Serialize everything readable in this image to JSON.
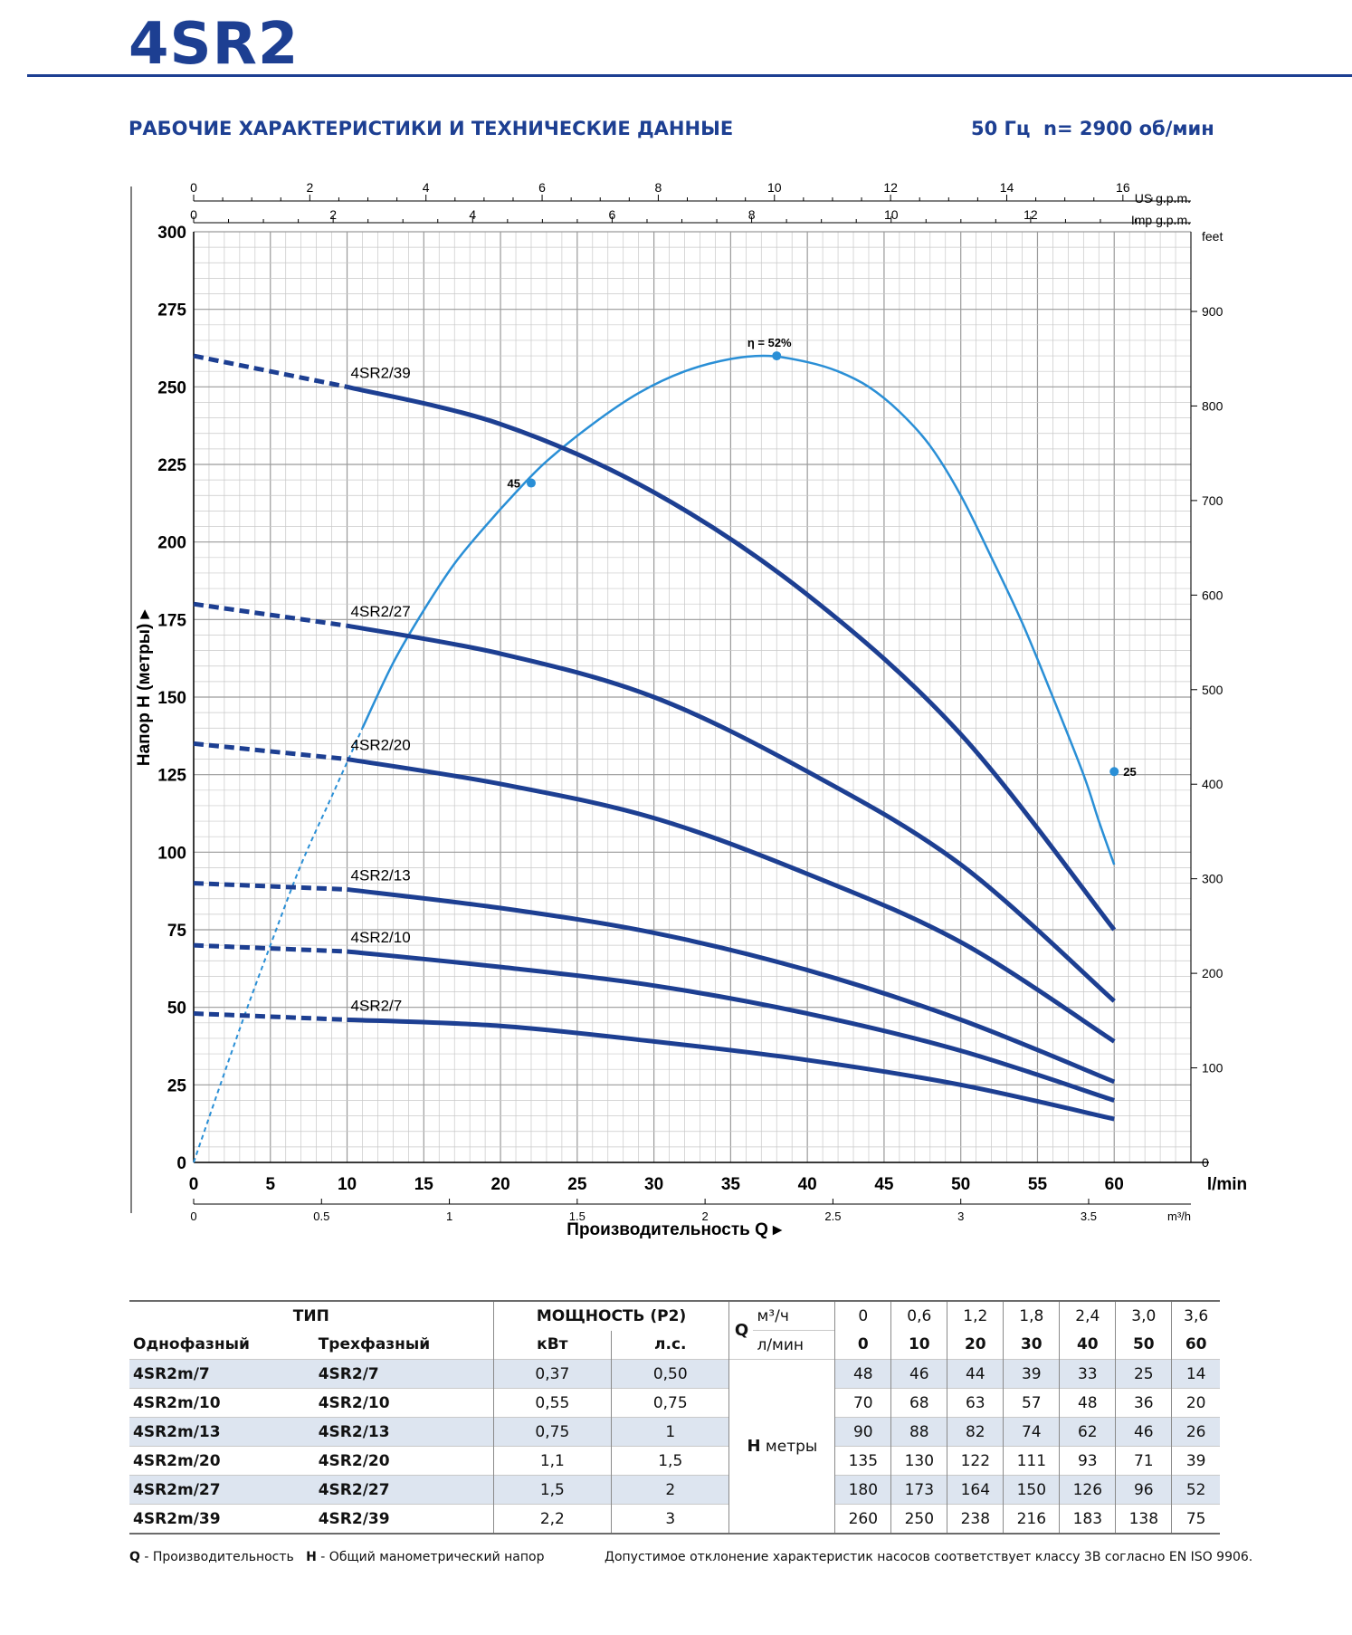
{
  "header": {
    "model": "4SR2",
    "subtitle": "РАБОЧИЕ ХАРАКТЕРИСТИКИ И ТЕХНИЧЕСКИЕ ДАННЫЕ",
    "frequency": "50 Гц",
    "speed": "n= 2900 об/мин"
  },
  "chart_data": {
    "type": "line",
    "xlabel": "Производительность Q",
    "ylabel": "Напор H (метры)",
    "x_unit": "l/min",
    "y_unit_right": "feet",
    "xlim": [
      0,
      65
    ],
    "ylim": [
      0,
      300
    ],
    "x_ticks": [
      "0",
      "5",
      "10",
      "15",
      "20",
      "25",
      "30",
      "35",
      "40",
      "45",
      "50",
      "55",
      "60"
    ],
    "y_ticks": [
      "0",
      "25",
      "50",
      "75",
      "100",
      "125",
      "150",
      "175",
      "200",
      "225",
      "250",
      "275",
      "300"
    ],
    "feet_ticks": [
      "0",
      "100",
      "200",
      "300",
      "400",
      "500",
      "600",
      "700",
      "800",
      "900"
    ],
    "m3h_unit": "m³/h",
    "m3h_ticks": [
      "0",
      "0.5",
      "1",
      "1.5",
      "2",
      "2.5",
      "3",
      "3.5"
    ],
    "usgpm_unit": "US g.p.m.",
    "usgpm_ticks": [
      "0",
      "2",
      "4",
      "6",
      "8",
      "10",
      "12",
      "14",
      "16"
    ],
    "impgpm_unit": "Imp g.p.m.",
    "impgpm_ticks": [
      "0",
      "2",
      "4",
      "6",
      "8",
      "10",
      "12"
    ],
    "grid": true,
    "series": [
      {
        "name": "4SR2/39",
        "x": [
          0,
          10,
          20,
          30,
          40,
          50,
          60
        ],
        "y": [
          260,
          250,
          238,
          216,
          183,
          138,
          75
        ]
      },
      {
        "name": "4SR2/27",
        "x": [
          0,
          10,
          20,
          30,
          40,
          50,
          60
        ],
        "y": [
          180,
          173,
          164,
          150,
          126,
          96,
          52
        ]
      },
      {
        "name": "4SR2/20",
        "x": [
          0,
          10,
          20,
          30,
          40,
          50,
          60
        ],
        "y": [
          135,
          130,
          122,
          111,
          93,
          71,
          39
        ]
      },
      {
        "name": "4SR2/13",
        "x": [
          0,
          10,
          20,
          30,
          40,
          50,
          60
        ],
        "y": [
          90,
          88,
          82,
          74,
          62,
          46,
          26
        ]
      },
      {
        "name": "4SR2/10",
        "x": [
          0,
          10,
          20,
          30,
          40,
          50,
          60
        ],
        "y": [
          70,
          68,
          63,
          57,
          48,
          36,
          20
        ]
      },
      {
        "name": "4SR2/7",
        "x": [
          0,
          10,
          20,
          30,
          40,
          50,
          60
        ],
        "y": [
          48,
          46,
          44,
          39,
          33,
          25,
          14
        ]
      }
    ],
    "efficiency": {
      "x": [
        0,
        3,
        5,
        7,
        9,
        11,
        13,
        15,
        17,
        19,
        21,
        23,
        26,
        29,
        32,
        35,
        37.5,
        40,
        42,
        44,
        46,
        48,
        50,
        52,
        54,
        56,
        58,
        59,
        60
      ],
      "y": [
        0,
        43,
        70,
        96,
        118,
        140,
        161,
        178,
        193,
        205,
        216,
        226,
        238,
        248,
        255,
        259,
        260,
        258,
        255,
        250,
        242,
        231,
        215,
        195,
        174,
        150,
        125,
        110,
        96
      ],
      "dashed_until_x": 10,
      "labels": [
        {
          "x": 22,
          "y": 219,
          "text": "45"
        },
        {
          "x": 38,
          "y": 260,
          "text": "η = 52%"
        },
        {
          "x": 60,
          "y": 126,
          "text": "25"
        }
      ]
    }
  },
  "table": {
    "col_type": "ТИП",
    "col_single": "Однофазный",
    "col_three": "Трехфазный",
    "col_power": "МОЩНОСТЬ (P2)",
    "col_kw": "кВт",
    "col_hp": "л.с.",
    "q_label": "Q",
    "q_unit_m3h": "м³/ч",
    "q_unit_lmin": "л/мин",
    "q_m3h": [
      "0",
      "0,6",
      "1,2",
      "1,8",
      "2,4",
      "3,0",
      "3,6"
    ],
    "q_lmin": [
      "0",
      "10",
      "20",
      "30",
      "40",
      "50",
      "60"
    ],
    "h_label": "H",
    "h_unit": "метры",
    "rows": [
      {
        "single": "4SR2m/7",
        "three": "4SR2/7",
        "kw": "0,37",
        "hp": "0,50",
        "h": [
          "48",
          "46",
          "44",
          "39",
          "33",
          "25",
          "14"
        ]
      },
      {
        "single": "4SR2m/10",
        "three": "4SR2/10",
        "kw": "0,55",
        "hp": "0,75",
        "h": [
          "70",
          "68",
          "63",
          "57",
          "48",
          "36",
          "20"
        ]
      },
      {
        "single": "4SR2m/13",
        "three": "4SR2/13",
        "kw": "0,75",
        "hp": "1",
        "h": [
          "90",
          "88",
          "82",
          "74",
          "62",
          "46",
          "26"
        ]
      },
      {
        "single": "4SR2m/20",
        "three": "4SR2/20",
        "kw": "1,1",
        "hp": "1,5",
        "h": [
          "135",
          "130",
          "122",
          "111",
          "93",
          "71",
          "39"
        ]
      },
      {
        "single": "4SR2m/27",
        "three": "4SR2/27",
        "kw": "1,5",
        "hp": "2",
        "h": [
          "180",
          "173",
          "164",
          "150",
          "126",
          "96",
          "52"
        ]
      },
      {
        "single": "4SR2m/39",
        "three": "4SR2/39",
        "kw": "2,2",
        "hp": "3",
        "h": [
          "260",
          "250",
          "238",
          "216",
          "183",
          "138",
          "75"
        ]
      }
    ]
  },
  "footer": {
    "q_key": "Q",
    "q_desc": " - Производительность",
    "h_key": "H",
    "h_desc": " - Общий манометрический напор",
    "tolerance": "Допустимое отклонение характеристик насосов соответствует классу 3В согласно EN ISO 9906."
  },
  "colors": {
    "brand": "#1d3f92",
    "curve": "#1d3f92",
    "efficiency": "#2a8fd6",
    "grid": "#b8b8b8"
  }
}
